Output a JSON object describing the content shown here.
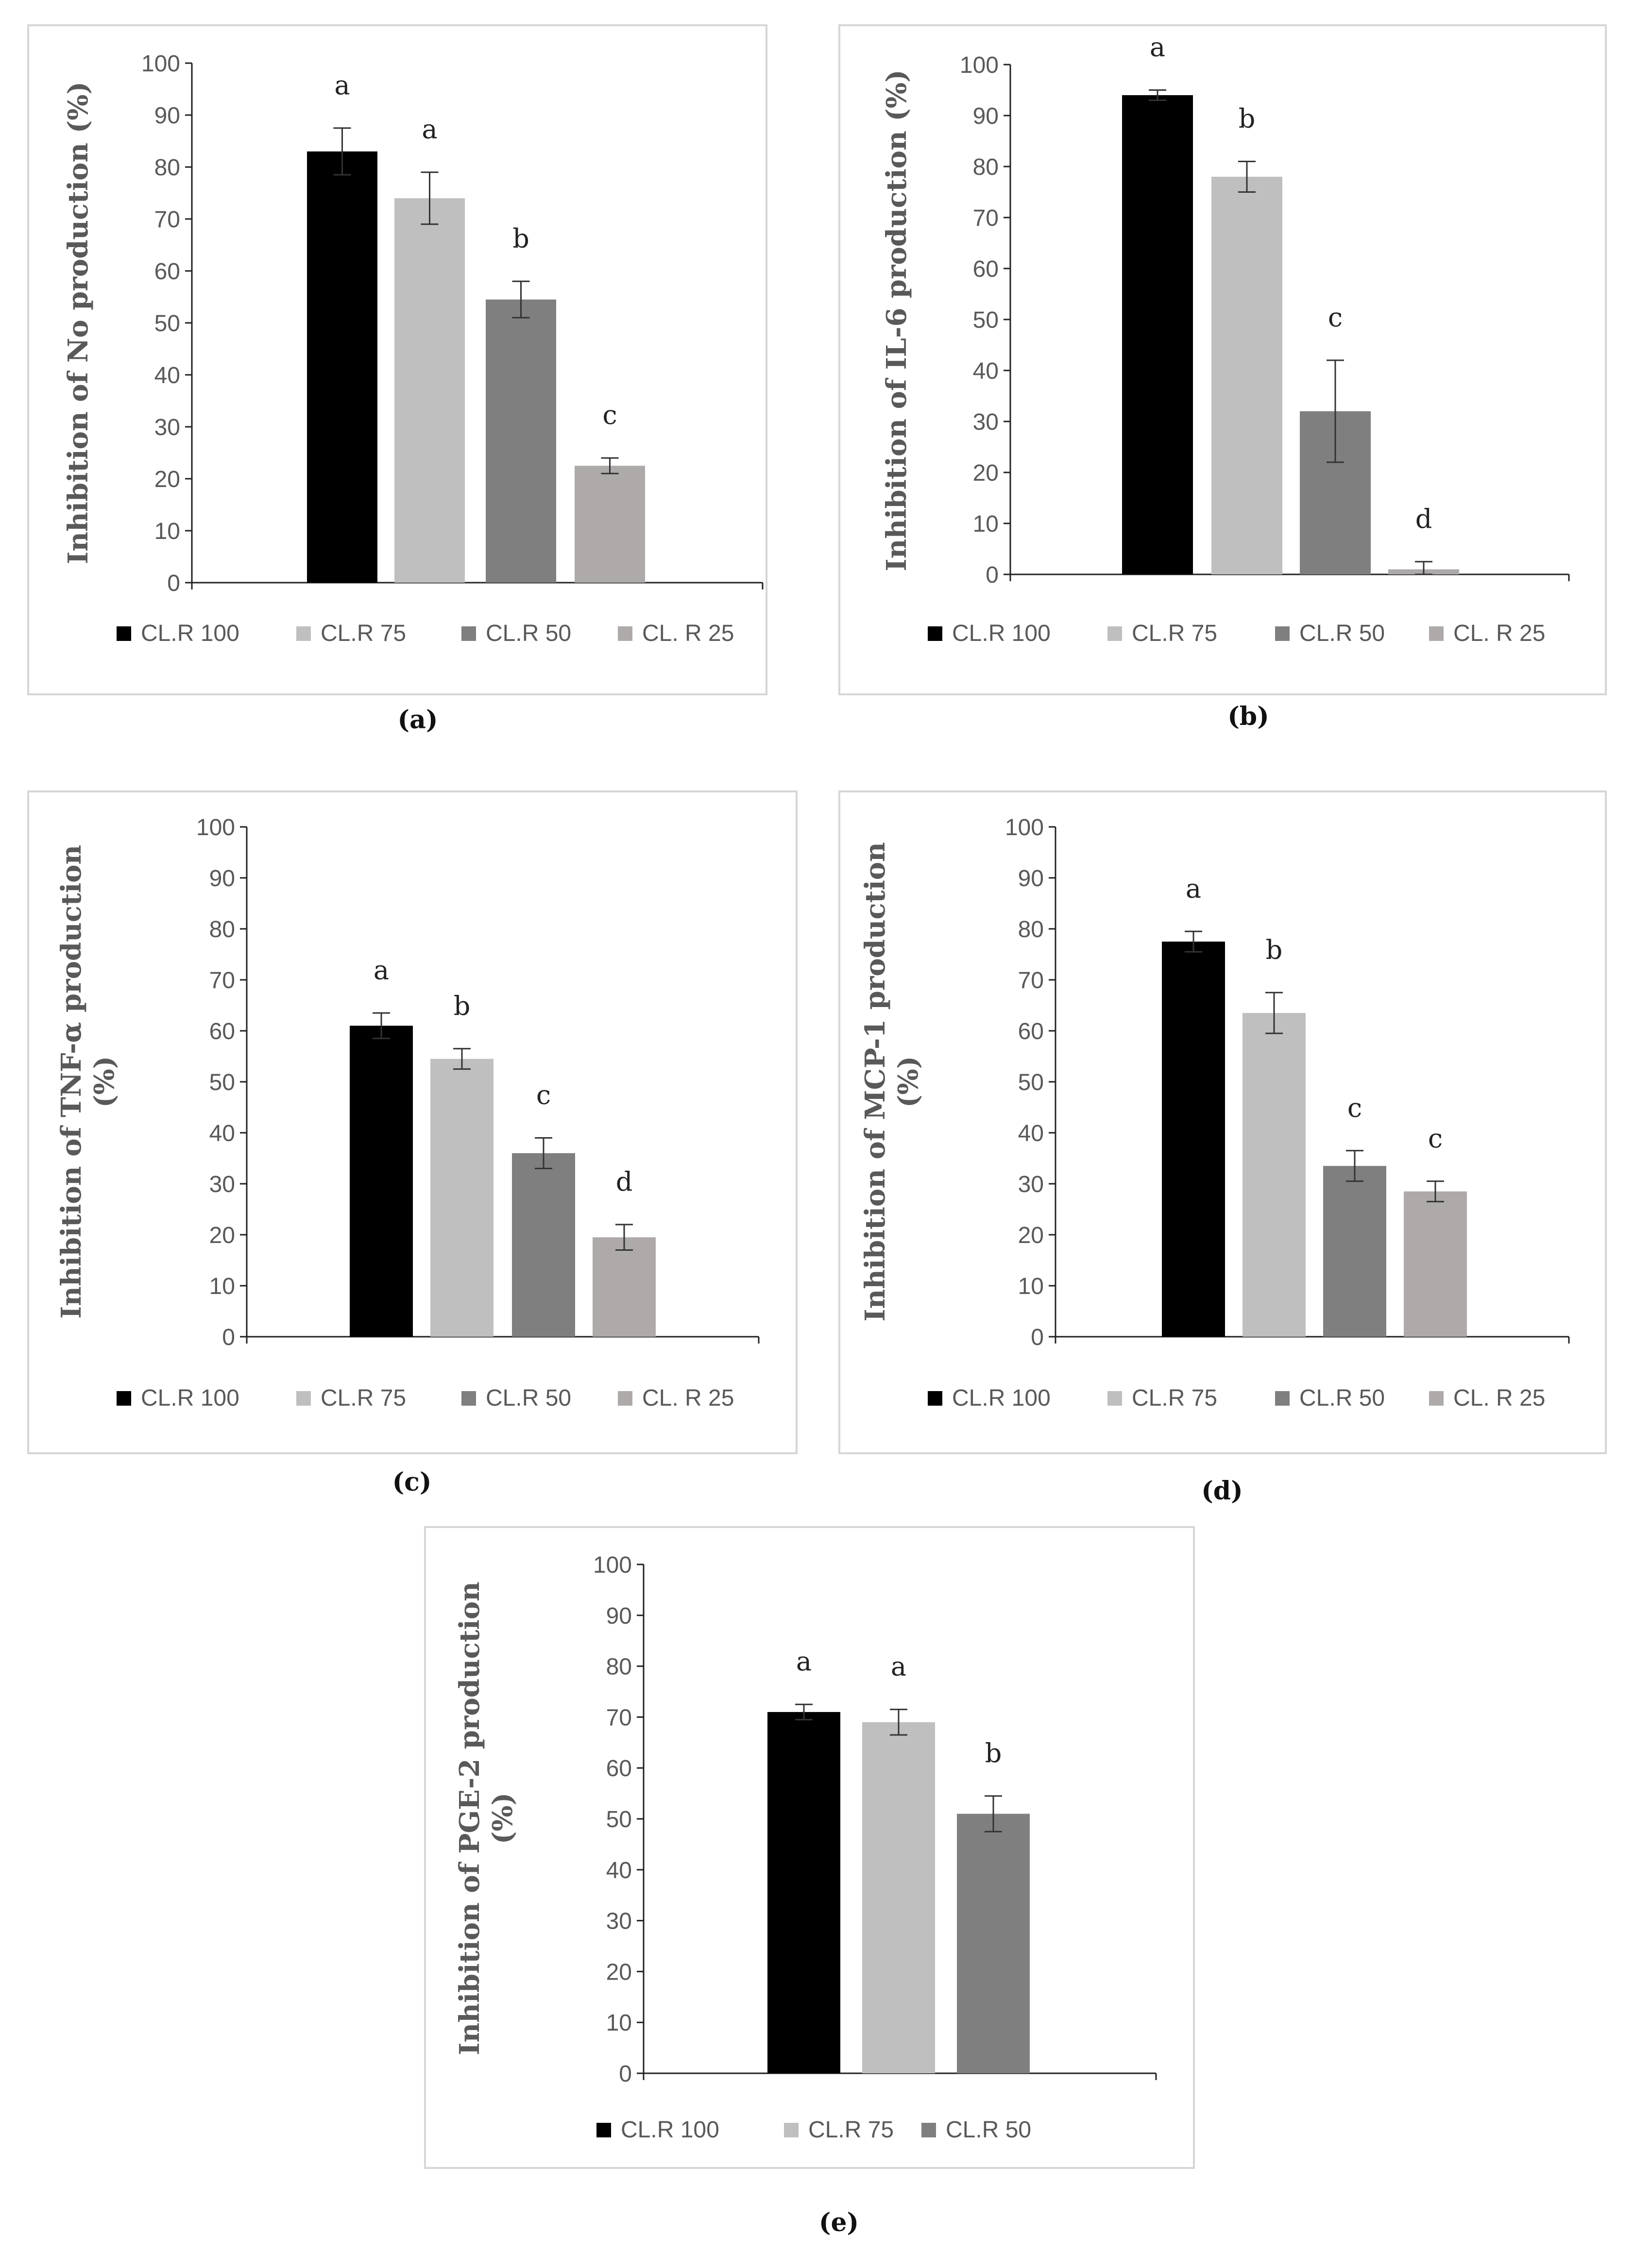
{
  "chart_data": [
    {
      "type": "bar",
      "panel_label": "(a)",
      "ylabel": "Inhibition of No production (%)",
      "ylabel_lines": [
        "Inhibition of No production (%)"
      ],
      "ylim": [
        0,
        100
      ],
      "yticks": [
        "0",
        "10",
        "20",
        "30",
        "40",
        "50",
        "60",
        "70",
        "80",
        "90",
        "100"
      ],
      "categories": [
        "CL.R 100",
        "CL.R 75",
        "CL.R 50",
        "CL. R 25"
      ],
      "values": [
        83,
        74,
        54.5,
        22.5
      ],
      "errors": [
        4.5,
        5,
        3.5,
        1.5
      ],
      "significance": [
        "a",
        "a",
        "b",
        "c"
      ],
      "legend": [
        "CL.R 100",
        "CL.R 75",
        "CL.R 50",
        "CL. R 25"
      ],
      "colors": [
        "#000000",
        "#bfbfbf",
        "#7f7f7f",
        "#aeaaaa"
      ]
    },
    {
      "type": "bar",
      "panel_label": "(b)",
      "ylabel": "Inhibition of IL-6 production (%)",
      "ylabel_lines": [
        "Inhibition of IL-6 production (%)"
      ],
      "ylim": [
        0,
        100
      ],
      "yticks": [
        "0",
        "10",
        "20",
        "30",
        "40",
        "50",
        "60",
        "70",
        "80",
        "90",
        "100"
      ],
      "categories": [
        "CL.R 100",
        "CL.R 75",
        "CL.R 50",
        "CL. R 25"
      ],
      "values": [
        94,
        78,
        32,
        1
      ],
      "errors": [
        1,
        3,
        10,
        1.5
      ],
      "significance": [
        "a",
        "b",
        "c",
        "d"
      ],
      "legend": [
        "CL.R 100",
        "CL.R 75",
        "CL.R 50",
        "CL. R 25"
      ],
      "colors": [
        "#000000",
        "#bfbfbf",
        "#7f7f7f",
        "#aeaaaa"
      ]
    },
    {
      "type": "bar",
      "panel_label": "(c)",
      "ylabel": "Inhibition of TNF-α production (%)",
      "ylabel_lines": [
        "Inhibition of TNF-α production",
        "(%)"
      ],
      "ylim": [
        0,
        100
      ],
      "yticks": [
        "0",
        "10",
        "20",
        "30",
        "40",
        "50",
        "60",
        "70",
        "80",
        "90",
        "100"
      ],
      "categories": [
        "CL.R 100",
        "CL.R 75",
        "CL.R 50",
        "CL. R 25"
      ],
      "values": [
        61,
        54.5,
        36,
        19.5
      ],
      "errors": [
        2.5,
        2,
        3,
        2.5
      ],
      "significance": [
        "a",
        "b",
        "c",
        "d"
      ],
      "legend": [
        "CL.R 100",
        "CL.R 75",
        "CL.R 50",
        "CL. R 25"
      ],
      "colors": [
        "#000000",
        "#bfbfbf",
        "#7f7f7f",
        "#aeaaaa"
      ]
    },
    {
      "type": "bar",
      "panel_label": "(d)",
      "ylabel": "Inhibition of MCP-1 production (%)",
      "ylabel_lines": [
        "Inhibition of MCP-1 production",
        "(%)"
      ],
      "ylim": [
        0,
        100
      ],
      "yticks": [
        "0",
        "10",
        "20",
        "30",
        "40",
        "50",
        "60",
        "70",
        "80",
        "90",
        "100"
      ],
      "categories": [
        "CL.R 100",
        "CL.R 75",
        "CL.R 50",
        "CL. R 25"
      ],
      "values": [
        77.5,
        63.5,
        33.5,
        28.5
      ],
      "errors": [
        2,
        4,
        3,
        2
      ],
      "significance": [
        "a",
        "b",
        "c",
        "c"
      ],
      "legend": [
        "CL.R 100",
        "CL.R 75",
        "CL.R 50",
        "CL. R 25"
      ],
      "colors": [
        "#000000",
        "#bfbfbf",
        "#7f7f7f",
        "#aeaaaa"
      ]
    },
    {
      "type": "bar",
      "panel_label": "(e)",
      "ylabel": "Inhibition of PGE-2 production (%)",
      "ylabel_lines": [
        "Inhibition of PGE-2 production",
        "(%)"
      ],
      "ylim": [
        0,
        100
      ],
      "yticks": [
        "0",
        "10",
        "20",
        "30",
        "40",
        "50",
        "60",
        "70",
        "80",
        "90",
        "100"
      ],
      "categories": [
        "CL.R 100",
        "CL.R 75",
        "CL.R 50"
      ],
      "values": [
        71,
        69,
        51
      ],
      "errors": [
        1.5,
        2.5,
        3.5
      ],
      "significance": [
        "a",
        "a",
        "b"
      ],
      "legend": [
        "CL.R 100",
        "CL.R 75",
        "CL.R 50"
      ],
      "colors": [
        "#000000",
        "#bfbfbf",
        "#7f7f7f"
      ]
    }
  ]
}
